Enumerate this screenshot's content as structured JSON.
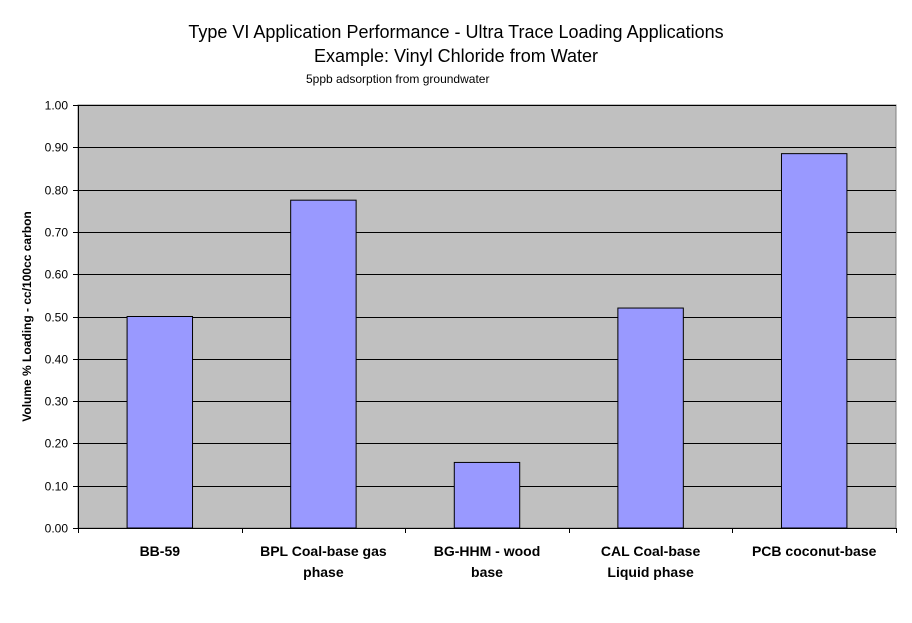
{
  "chart_data": {
    "type": "bar",
    "title": [
      "Type VI Application Performance - Ultra Trace Loading Applications",
      "Example: Vinyl Chloride from Water"
    ],
    "subtitle": "5ppb adsorption from groundwater",
    "ylabel": "Volume % Loading - cc/100cc carbon",
    "xlabel": "",
    "ylim": [
      0,
      1.0
    ],
    "yticks": [
      "0.00",
      "0.10",
      "0.20",
      "0.30",
      "0.40",
      "0.50",
      "0.60",
      "0.70",
      "0.80",
      "0.90",
      "1.00"
    ],
    "categories": [
      [
        "BB-59"
      ],
      [
        "BPL Coal-base gas",
        "phase"
      ],
      [
        "BG-HHM - wood",
        "base"
      ],
      [
        "CAL Coal-base",
        "Liquid phase"
      ],
      [
        "PCB coconut-base"
      ]
    ],
    "values": [
      0.5,
      0.775,
      0.155,
      0.52,
      0.885
    ],
    "grid": true,
    "legend": "none",
    "colors": {
      "bar": "#9999ff",
      "plot_bg": "#c0c0c0",
      "grid": "#000000"
    }
  }
}
